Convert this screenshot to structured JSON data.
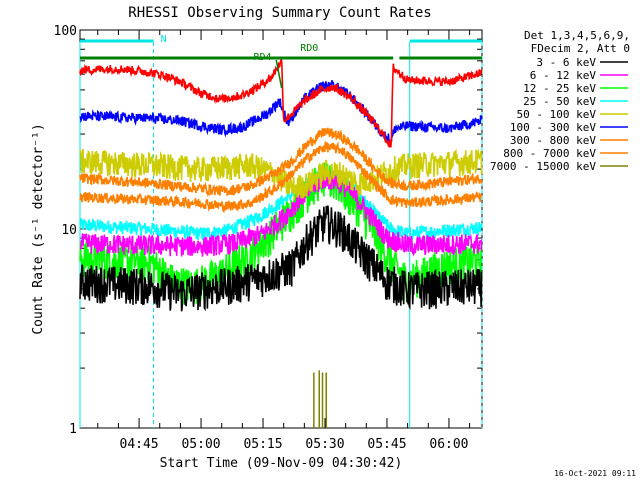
{
  "chart_data": {
    "type": "line",
    "title": "RHESSI Observing Summary Count Rates",
    "xlabel": "Start Time (09-Nov-09 04:30:42)",
    "ylabel": "Count Rate (s⁻¹ detector⁻¹)",
    "y_scale": "log",
    "ylim": [
      1,
      100
    ],
    "xlim_minutes_of_day": [
      270.7,
      368
    ],
    "x_ticks": [
      {
        "minute": 285,
        "label": "04:45"
      },
      {
        "minute": 300,
        "label": "05:00"
      },
      {
        "minute": 315,
        "label": "05:15"
      },
      {
        "minute": 330,
        "label": "05:30"
      },
      {
        "minute": 345,
        "label": "05:45"
      },
      {
        "minute": 360,
        "label": "06:00"
      }
    ],
    "y_ticks": [
      {
        "value": 1,
        "label": "1"
      },
      {
        "value": 10,
        "label": "10"
      },
      {
        "value": 100,
        "label": "100"
      }
    ],
    "legend_header": [
      "Det 1,3,4,5,6,9,",
      "FDecim 2, Att 0"
    ],
    "legend_position": "right",
    "footer_date": "16-Oct-2021 09:11",
    "flags": [
      {
        "label": "N",
        "color": "#00e5e5",
        "segments": [
          [
            270.7,
            288.5
          ],
          [
            350.5,
            368
          ]
        ]
      },
      {
        "label": "RD0",
        "color": "#008000",
        "segments": [
          [
            270.7,
            346.5
          ],
          [
            348,
            368
          ]
        ]
      },
      {
        "label": "RD4",
        "color": "#008000",
        "segments": [
          [
            318.2,
            319.5
          ]
        ]
      }
    ],
    "cyan_vlines_minutes": [
      270.7,
      288.5,
      350.5,
      368
    ],
    "series": [
      {
        "name": "3 - 6 keV",
        "color": "#000000",
        "points": [
          [
            270.7,
            5.5
          ],
          [
            288,
            5.2
          ],
          [
            295,
            4.8
          ],
          [
            300,
            5
          ],
          [
            308,
            5.3
          ],
          [
            315,
            5.8
          ],
          [
            322,
            6.5
          ],
          [
            326,
            9
          ],
          [
            330,
            11
          ],
          [
            334,
            10
          ],
          [
            338,
            8
          ],
          [
            342,
            6.5
          ],
          [
            345,
            5.5
          ],
          [
            350,
            5
          ],
          [
            368,
            5.2
          ]
        ]
      },
      {
        "name": "6 - 12 keV",
        "color": "#ff00ff",
        "points": [
          [
            270.7,
            8.5
          ],
          [
            288,
            8.3
          ],
          [
            300,
            8.2
          ],
          [
            308,
            8.5
          ],
          [
            315,
            9.5
          ],
          [
            320,
            11.5
          ],
          [
            325,
            15
          ],
          [
            330,
            18
          ],
          [
            334,
            17
          ],
          [
            338,
            14
          ],
          [
            342,
            11
          ],
          [
            345,
            9
          ],
          [
            350,
            8.3
          ],
          [
            368,
            8.5
          ]
        ]
      },
      {
        "name": "12 - 25 keV",
        "color": "#00ff00",
        "points": [
          [
            270.7,
            7.2
          ],
          [
            288,
            6.8
          ],
          [
            293,
            5.5
          ],
          [
            298,
            5.2
          ],
          [
            305,
            6
          ],
          [
            312,
            7.5
          ],
          [
            318,
            10
          ],
          [
            324,
            14
          ],
          [
            329,
            18
          ],
          [
            333,
            17
          ],
          [
            338,
            13
          ],
          [
            342,
            9.5
          ],
          [
            346,
            6.8
          ],
          [
            350,
            5.5
          ],
          [
            358,
            6.5
          ],
          [
            368,
            7
          ]
        ]
      },
      {
        "name": "25 - 50 keV",
        "color": "#00ffff",
        "points": [
          [
            270.7,
            10.5
          ],
          [
            288,
            10
          ],
          [
            300,
            9.5
          ],
          [
            306,
            9.8
          ],
          [
            312,
            11
          ],
          [
            318,
            13
          ],
          [
            324,
            16
          ],
          [
            330,
            19
          ],
          [
            334,
            18
          ],
          [
            338,
            15
          ],
          [
            342,
            12
          ],
          [
            346,
            10
          ],
          [
            350,
            9.5
          ],
          [
            368,
            10.2
          ]
        ]
      },
      {
        "name": "50 - 100 keV",
        "color": "#cccc00",
        "points": [
          [
            270.7,
            22
          ],
          [
            288,
            21
          ],
          [
            300,
            20
          ],
          [
            306,
            20.5
          ],
          [
            312,
            21
          ],
          [
            318,
            19
          ],
          [
            322,
            16
          ],
          [
            326,
            17
          ],
          [
            330,
            19.5
          ],
          [
            334,
            19
          ],
          [
            338,
            17
          ],
          [
            342,
            18
          ],
          [
            346,
            20
          ],
          [
            350,
            21
          ],
          [
            368,
            22
          ]
        ]
      },
      {
        "name": "100 - 300 keV",
        "color": "#0000ff",
        "points": [
          [
            270.7,
            37
          ],
          [
            288,
            36
          ],
          [
            295,
            35
          ],
          [
            300,
            33
          ],
          [
            305,
            31.5
          ],
          [
            310,
            32.5
          ],
          [
            316,
            38
          ],
          [
            319,
            44
          ],
          [
            321,
            34
          ],
          [
            325,
            45
          ],
          [
            329,
            52
          ],
          [
            332,
            53
          ],
          [
            336,
            47
          ],
          [
            340,
            38
          ],
          [
            344,
            30
          ],
          [
            346,
            28
          ],
          [
            347,
            32
          ],
          [
            350,
            33
          ],
          [
            360,
            32
          ],
          [
            368,
            35
          ]
        ]
      },
      {
        "name": "300 - 800 keV",
        "color": "#ff8000",
        "points": [
          [
            270.7,
            18
          ],
          [
            288,
            17
          ],
          [
            300,
            16
          ],
          [
            306,
            15.5
          ],
          [
            312,
            16.5
          ],
          [
            318,
            19
          ],
          [
            322,
            22
          ],
          [
            326,
            27
          ],
          [
            330,
            31
          ],
          [
            334,
            29
          ],
          [
            338,
            25
          ],
          [
            342,
            20
          ],
          [
            346,
            17
          ],
          [
            350,
            16.5
          ],
          [
            368,
            18
          ]
        ]
      },
      {
        "name": "800 - 7000 keV",
        "color": "#ff8000",
        "points": [
          [
            270.7,
            14.5
          ],
          [
            288,
            14
          ],
          [
            300,
            13.5
          ],
          [
            306,
            13
          ],
          [
            312,
            13.5
          ],
          [
            318,
            16
          ],
          [
            322,
            19
          ],
          [
            326,
            23
          ],
          [
            330,
            26
          ],
          [
            334,
            25
          ],
          [
            338,
            21
          ],
          [
            342,
            17
          ],
          [
            346,
            14
          ],
          [
            350,
            13.5
          ],
          [
            368,
            14.5
          ]
        ]
      },
      {
        "name": "7000 - 15000 keV",
        "color": "#808000",
        "points": [
          [
            327,
            1
          ],
          [
            327.3,
            1.9
          ],
          [
            327.8,
            1
          ],
          [
            328.6,
            1.95
          ],
          [
            329,
            1
          ],
          [
            329.4,
            1.9
          ],
          [
            329.8,
            1
          ],
          [
            330.3,
            1.9
          ],
          [
            330.7,
            1
          ]
        ]
      }
    ],
    "extra_series_no_legend": [
      {
        "color": "#ff0000",
        "points": [
          [
            270.7,
            63
          ],
          [
            280,
            64
          ],
          [
            286,
            62
          ],
          [
            290,
            60
          ],
          [
            295,
            55
          ],
          [
            300,
            48
          ],
          [
            305,
            45
          ],
          [
            310,
            47
          ],
          [
            314,
            52
          ],
          [
            317,
            58
          ],
          [
            319.5,
            70
          ],
          [
            320,
            35
          ],
          [
            322,
            38
          ],
          [
            325,
            44
          ],
          [
            329,
            50
          ],
          [
            332,
            52
          ],
          [
            336,
            46
          ],
          [
            340,
            38
          ],
          [
            344,
            30
          ],
          [
            346,
            26
          ],
          [
            346.5,
            65
          ],
          [
            350,
            56
          ],
          [
            360,
            55
          ],
          [
            368,
            61
          ]
        ]
      }
    ],
    "y_axis_label_values": [
      1,
      10,
      100
    ]
  }
}
